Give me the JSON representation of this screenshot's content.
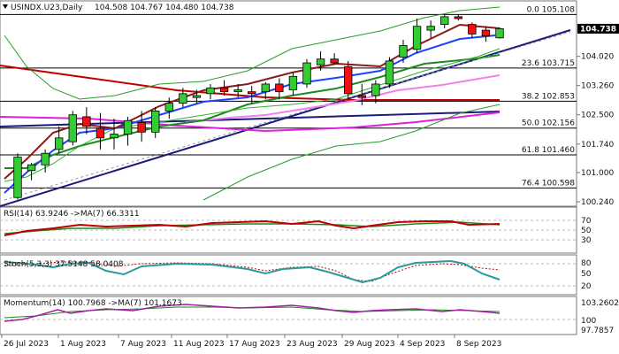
{
  "header": {
    "symbol": "USINDX.U23,Daily",
    "ohlc": "104.508 104.767 104.480 104.738"
  },
  "chart_data": {
    "type": "candlestick",
    "x_labels": [
      "26 Jul 2023",
      "1 Aug 2023",
      "7 Aug 2023",
      "11 Aug 2023",
      "17 Aug 2023",
      "23 Aug 2023",
      "29 Aug 2023",
      "4 Sep 2023",
      "8 Sep 2023"
    ],
    "price_axis_labels": [
      "104.738",
      "104.020",
      "103.260",
      "102.500",
      "101.740",
      "101.000",
      "100.240"
    ],
    "price_range": [
      100.24,
      105.3
    ],
    "last_price": 104.738,
    "fib_levels": [
      {
        "label": "0.0 105.108",
        "value": 105.108
      },
      {
        "label": "23.6 103.715",
        "value": 103.715
      },
      {
        "label": "38.2 102.853",
        "value": 102.853
      },
      {
        "label": "50.0 102.156",
        "value": 102.156
      },
      {
        "label": "61.8 101.460",
        "value": 101.46
      },
      {
        "label": "76.4 100.598",
        "value": 100.598
      }
    ],
    "candles": [
      {
        "o": 100.35,
        "h": 101.5,
        "l": 100.3,
        "c": 101.4
      },
      {
        "o": 101.05,
        "h": 101.25,
        "l": 100.8,
        "c": 101.2
      },
      {
        "o": 101.2,
        "h": 101.6,
        "l": 101.0,
        "c": 101.5
      },
      {
        "o": 101.6,
        "h": 102.2,
        "l": 101.5,
        "c": 101.9
      },
      {
        "o": 101.8,
        "h": 102.6,
        "l": 101.7,
        "c": 102.5
      },
      {
        "o": 102.45,
        "h": 102.7,
        "l": 102.0,
        "c": 102.2
      },
      {
        "o": 102.15,
        "h": 102.55,
        "l": 101.6,
        "c": 101.9
      },
      {
        "o": 101.9,
        "h": 102.4,
        "l": 101.6,
        "c": 102.0
      },
      {
        "o": 102.0,
        "h": 102.45,
        "l": 101.7,
        "c": 102.35
      },
      {
        "o": 102.3,
        "h": 102.6,
        "l": 101.8,
        "c": 102.05
      },
      {
        "o": 102.05,
        "h": 102.7,
        "l": 101.9,
        "c": 102.6
      },
      {
        "o": 102.6,
        "h": 102.95,
        "l": 102.4,
        "c": 102.8
      },
      {
        "o": 102.8,
        "h": 103.2,
        "l": 102.7,
        "c": 103.05
      },
      {
        "o": 102.95,
        "h": 103.15,
        "l": 102.8,
        "c": 103.0
      },
      {
        "o": 103.05,
        "h": 103.3,
        "l": 102.9,
        "c": 103.2
      },
      {
        "o": 103.2,
        "h": 103.4,
        "l": 103.0,
        "c": 103.1
      },
      {
        "o": 103.1,
        "h": 103.3,
        "l": 102.95,
        "c": 103.15
      },
      {
        "o": 103.1,
        "h": 103.25,
        "l": 102.8,
        "c": 103.05
      },
      {
        "o": 103.1,
        "h": 103.35,
        "l": 102.9,
        "c": 103.3
      },
      {
        "o": 103.3,
        "h": 103.45,
        "l": 102.9,
        "c": 103.1
      },
      {
        "o": 103.15,
        "h": 103.6,
        "l": 103.0,
        "c": 103.5
      },
      {
        "o": 103.3,
        "h": 103.95,
        "l": 103.2,
        "c": 103.85
      },
      {
        "o": 103.8,
        "h": 104.15,
        "l": 103.65,
        "c": 103.95
      },
      {
        "o": 103.95,
        "h": 104.1,
        "l": 103.8,
        "c": 103.85
      },
      {
        "o": 103.75,
        "h": 103.9,
        "l": 102.9,
        "c": 103.05
      },
      {
        "o": 103.0,
        "h": 103.3,
        "l": 102.75,
        "c": 102.95
      },
      {
        "o": 103.0,
        "h": 103.4,
        "l": 102.8,
        "c": 103.3
      },
      {
        "o": 103.3,
        "h": 104.0,
        "l": 103.2,
        "c": 103.9
      },
      {
        "o": 104.0,
        "h": 104.45,
        "l": 103.85,
        "c": 104.3
      },
      {
        "o": 104.2,
        "h": 105.0,
        "l": 104.1,
        "c": 104.8
      },
      {
        "o": 104.7,
        "h": 104.95,
        "l": 104.5,
        "c": 104.8
      },
      {
        "o": 104.85,
        "h": 105.1,
        "l": 104.75,
        "c": 105.05
      },
      {
        "o": 105.05,
        "h": 105.1,
        "l": 104.95,
        "c": 105.0
      },
      {
        "o": 104.85,
        "h": 104.9,
        "l": 104.5,
        "c": 104.6
      },
      {
        "o": 104.7,
        "h": 104.8,
        "l": 104.4,
        "c": 104.55
      },
      {
        "o": 104.5,
        "h": 104.77,
        "l": 104.48,
        "c": 104.74
      }
    ],
    "rsi": {
      "label": "RSI(14) 63.9246 ->MA(7) 66.3311",
      "levels": [
        "70",
        "50",
        "30"
      ],
      "range": [
        0,
        100
      ]
    },
    "stoch": {
      "label": "Stoch(5,3,3) 37.5148 58.0408",
      "levels": [
        "80",
        "50",
        "20"
      ],
      "range": [
        0,
        100
      ]
    },
    "momentum": {
      "label": "Momentum(14) 100.7968 ->MA(7) 101.1673",
      "levels": [
        "103.2602",
        "100",
        "97.7857"
      ],
      "range": [
        97.7857,
        103.2602
      ]
    }
  }
}
